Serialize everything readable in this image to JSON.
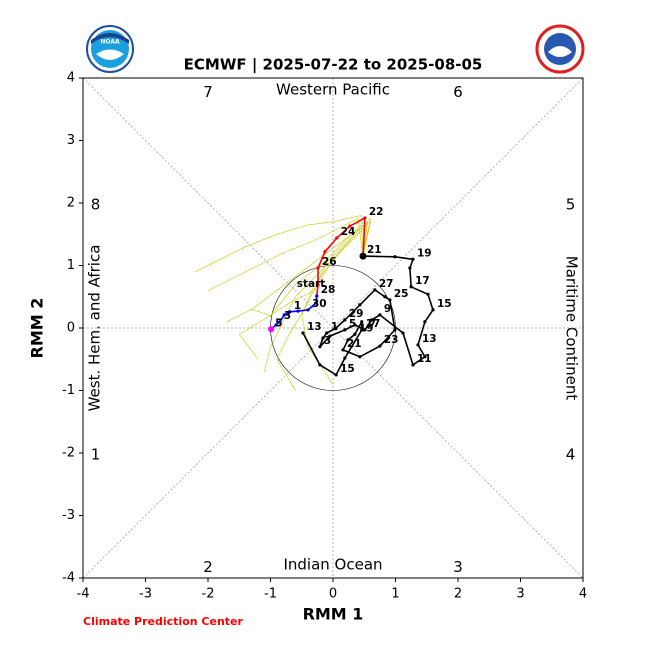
{
  "chart_data": {
    "type": "line",
    "title": "ECMWF | 2025-07-22 to 2025-08-05",
    "xlabel": "RMM 1",
    "ylabel": "RMM 2",
    "xlim": [
      -4,
      4
    ],
    "ylim": [
      -4,
      4
    ],
    "xticks": [
      -4,
      -3,
      -2,
      -1,
      0,
      1,
      2,
      3,
      4
    ],
    "yticks": [
      -4,
      -3,
      -2,
      -1,
      0,
      1,
      2,
      3,
      4
    ],
    "phases": [
      "1",
      "2",
      "3",
      "4",
      "5",
      "6",
      "7",
      "8"
    ],
    "regions": {
      "top": "Western Pacific",
      "bottom": "Indian Ocean",
      "left": "West. Hem. and Africa",
      "right": "Maritime Continent"
    },
    "annotation": "start",
    "credit": "Climate Prediction Center",
    "logo_text": "NOAA",
    "members": {
      "color": "#c8c800",
      "lines": [
        {
          "x": [
            0.48,
            0.4,
            0.1,
            -0.3,
            -0.8,
            -1.2,
            -1.6,
            -2.0
          ],
          "y": [
            1.15,
            1.75,
            1.6,
            1.4,
            1.2,
            1.0,
            0.8,
            0.6
          ]
        },
        {
          "x": [
            0.48,
            0.6,
            0.3,
            -0.1,
            -0.5,
            -0.9,
            -1.3,
            -1.7
          ],
          "y": [
            1.15,
            1.7,
            1.5,
            1.2,
            0.9,
            0.6,
            0.3,
            0.1
          ]
        },
        {
          "x": [
            0.48,
            0.55,
            0.2,
            -0.2,
            -0.6,
            -0.8,
            -1.0,
            -1.1
          ],
          "y": [
            1.15,
            1.65,
            1.3,
            0.9,
            0.5,
            0.1,
            -0.3,
            -0.7
          ]
        },
        {
          "x": [
            0.48,
            0.45,
            0.0,
            -0.4,
            -0.9,
            -1.4,
            -1.8,
            -2.2
          ],
          "y": [
            1.15,
            1.8,
            1.7,
            1.65,
            1.5,
            1.3,
            1.1,
            0.9
          ]
        },
        {
          "x": [
            0.48,
            0.5,
            0.1,
            -0.3,
            -0.5,
            -0.4,
            -0.2,
            0.0
          ],
          "y": [
            1.15,
            1.6,
            1.2,
            0.7,
            0.2,
            -0.3,
            -0.6,
            -0.9
          ]
        },
        {
          "x": [
            0.48,
            0.6,
            0.4,
            0.0,
            -0.3,
            -0.7,
            -1.0,
            -1.3
          ],
          "y": [
            1.15,
            1.75,
            1.55,
            1.1,
            0.6,
            0.4,
            0.2,
            0.3
          ]
        },
        {
          "x": [
            0.48,
            0.5,
            0.2,
            -0.2,
            -0.6,
            -1.0,
            -1.5,
            -1.2
          ],
          "y": [
            1.15,
            1.7,
            1.4,
            1.0,
            0.7,
            0.2,
            -0.1,
            -0.5
          ]
        },
        {
          "x": [
            0.48,
            0.55,
            0.3,
            -0.1,
            -0.4,
            -0.7,
            -0.9,
            -0.6
          ],
          "y": [
            1.15,
            1.7,
            1.45,
            1.05,
            0.4,
            -0.1,
            -0.5,
            -1.0
          ]
        }
      ]
    },
    "series": [
      {
        "color": "#000000",
        "x": [
          -0.48,
          -0.21,
          0.05,
          0.19,
          0.46,
          0.46,
          0.35,
          0.24,
          0.16,
          0.43,
          0.75,
          0.99,
          0.91,
          0.83,
          0.67,
          0.43,
          0.19,
          0.05,
          -0.1,
          -0.16,
          -0.21,
          -0.05,
          0.19,
          0.35,
          0.51,
          0.62,
          0.75,
          1.12,
          1.28,
          1.47,
          1.36,
          1.47,
          1.6,
          1.52,
          1.25,
          1.23,
          1.28,
          0.99,
          0.48
        ],
        "y": [
          -0.08,
          -0.59,
          -0.75,
          -0.48,
          -0.03,
          0.1,
          -0.1,
          -0.19,
          -0.35,
          -0.46,
          -0.29,
          -0.03,
          0.45,
          0.5,
          0.61,
          0.37,
          0.13,
          0.0,
          -0.08,
          -0.16,
          -0.3,
          -0.13,
          -0.03,
          0.05,
          -0.03,
          0.13,
          0.21,
          -0.08,
          -0.59,
          -0.46,
          -0.27,
          0.1,
          0.29,
          0.54,
          0.66,
          0.96,
          1.1,
          1.14,
          1.15
        ],
        "labels": [
          "13",
          null,
          "15",
          null,
          "17",
          null,
          "19",
          null,
          "21",
          null,
          "23",
          null,
          "25",
          null,
          "27",
          null,
          "29",
          null,
          "1",
          null,
          "3",
          null,
          "5",
          null,
          "7",
          null,
          "9",
          null,
          "11",
          null,
          "13",
          null,
          "15",
          null,
          "17",
          null,
          "19",
          null,
          "21"
        ]
      },
      {
        "color": "#ff0000",
        "x": [
          0.48,
          0.51,
          0.27,
          0.06,
          -0.13,
          -0.24,
          -0.24,
          -0.26
        ],
        "y": [
          1.15,
          1.76,
          1.63,
          1.44,
          1.22,
          0.96,
          0.69,
          0.51
        ],
        "labels": [
          null,
          "22",
          null,
          "24",
          null,
          "26",
          null,
          null
        ]
      },
      {
        "color": "#0000ff",
        "x": [
          -0.26,
          -0.27,
          -0.4,
          -0.56,
          -0.69,
          -0.78,
          -0.85,
          -0.91,
          -0.99
        ],
        "y": [
          0.51,
          0.4,
          0.29,
          0.27,
          0.26,
          0.21,
          0.1,
          0.05,
          -0.02
        ],
        "labels": [
          "28",
          null,
          "30",
          null,
          "1",
          null,
          "3",
          null,
          "5"
        ]
      }
    ]
  }
}
